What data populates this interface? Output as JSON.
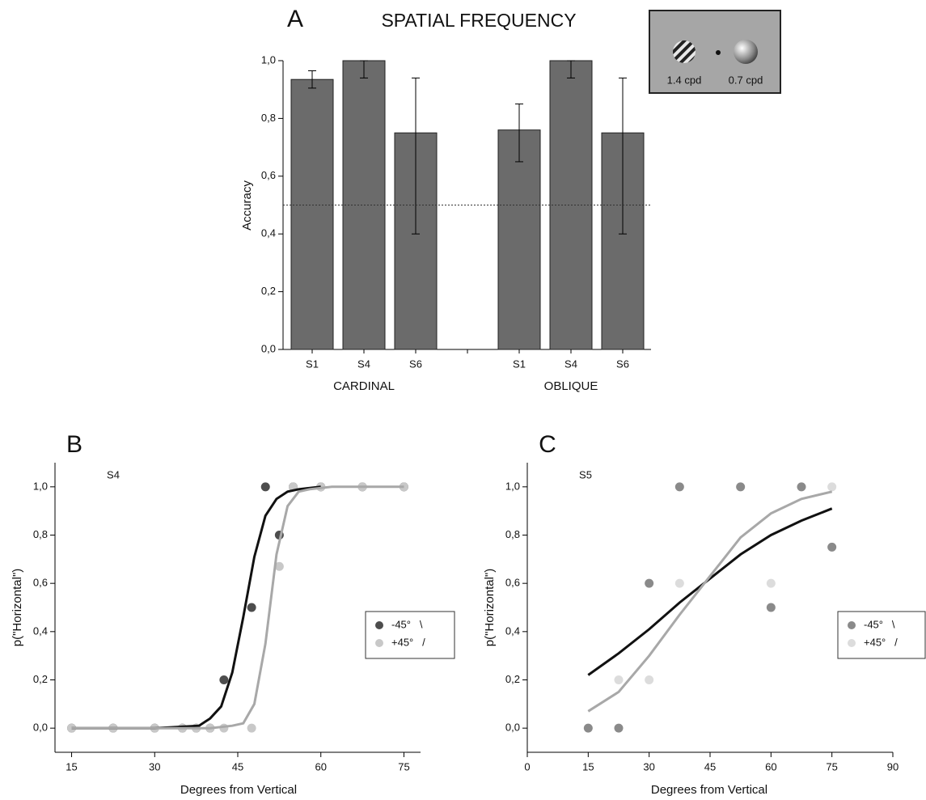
{
  "chart_data": [
    {
      "type": "bar",
      "panel": "A",
      "title": "SPATIAL FREQUENCY",
      "y_label": "Accuracy",
      "categories": [
        "S1",
        "S4",
        "S6",
        "S1",
        "S4",
        "S6"
      ],
      "groups": [
        "CARDINAL",
        "OBLIQUE"
      ],
      "values": [
        0.935,
        1.0,
        0.75,
        0.76,
        1.0,
        0.75
      ],
      "error_low": [
        0.03,
        0.06,
        0.35,
        0.11,
        0.06,
        0.35
      ],
      "error_high": [
        0.03,
        0,
        0.19,
        0.09,
        0,
        0.19
      ],
      "color": "#6b6b6b",
      "ylim": [
        0,
        1
      ],
      "yticks": [
        {
          "value": 0,
          "label": "0,0"
        },
        {
          "value": 0.2,
          "label": "0,2"
        },
        {
          "value": 0.4,
          "label": "0,4"
        },
        {
          "value": 0.6,
          "label": "0,6"
        },
        {
          "value": 0.8,
          "label": "0,8"
        },
        {
          "value": 1,
          "label": "1,0"
        }
      ],
      "hline": 0.5,
      "inset_labels": [
        "1.4 cpd",
        "0.7 cpd"
      ]
    },
    {
      "type": "scatter",
      "panel": "B",
      "subtitle": "S4",
      "x_label": "Degrees from Vertical",
      "y_label": "p(\"Horizontal\")",
      "xlim": [
        12,
        78
      ],
      "xticks": [
        15,
        30,
        45,
        60,
        75
      ],
      "ylim": [
        -0.1,
        1.1
      ],
      "yticks": [
        {
          "value": 0,
          "label": "0,0"
        },
        {
          "value": 0.2,
          "label": "0,2"
        },
        {
          "value": 0.4,
          "label": "0,4"
        },
        {
          "value": 0.6,
          "label": "0,6"
        },
        {
          "value": 0.8,
          "label": "0,8"
        },
        {
          "value": 1,
          "label": "1,0"
        }
      ],
      "legend": "right",
      "series": [
        {
          "name": "-45°   \\",
          "color": "#4d4d4d",
          "line_color": "#111111",
          "x": [
            15,
            22.5,
            30,
            35,
            37.5,
            40,
            42.5,
            47.5,
            50,
            52.5,
            55,
            60,
            67.5,
            75
          ],
          "values": [
            0,
            0,
            0,
            0,
            0,
            0,
            0.2,
            0.5,
            1,
            0.8,
            1,
            1,
            1,
            1
          ],
          "fit_x": [
            15,
            30,
            38,
            40,
            42,
            44,
            46,
            48,
            50,
            52,
            54,
            56,
            60
          ],
          "fit_values": [
            0,
            0,
            0.01,
            0.04,
            0.09,
            0.23,
            0.46,
            0.71,
            0.88,
            0.95,
            0.98,
            0.99,
            1
          ]
        },
        {
          "name": "+45°   /",
          "color": "#c8c8c8",
          "line_color": "#a8a8a8",
          "x": [
            15,
            22.5,
            30,
            35,
            37.5,
            40,
            42.5,
            47.5,
            52.5,
            55,
            60,
            67.5,
            75
          ],
          "values": [
            0,
            0,
            0,
            0,
            0,
            0,
            0,
            0,
            0.67,
            1,
            1,
            1,
            1
          ],
          "fit_x": [
            15,
            30,
            40,
            44,
            46,
            48,
            50,
            52,
            54,
            56,
            58,
            62,
            75
          ],
          "fit_values": [
            0,
            0,
            0,
            0.01,
            0.02,
            0.1,
            0.35,
            0.72,
            0.92,
            0.98,
            0.99,
            1,
            1
          ]
        }
      ]
    },
    {
      "type": "scatter",
      "panel": "C",
      "subtitle": "S5",
      "x_label": "Degrees from Vertical",
      "y_label": "p(\"Horizontal\")",
      "xlim": [
        0,
        90
      ],
      "xticks": [
        0,
        15,
        30,
        45,
        60,
        75,
        90
      ],
      "ylim": [
        -0.1,
        1.1
      ],
      "yticks": [
        {
          "value": 0,
          "label": "0,0"
        },
        {
          "value": 0.2,
          "label": "0,2"
        },
        {
          "value": 0.4,
          "label": "0,4"
        },
        {
          "value": 0.6,
          "label": "0,6"
        },
        {
          "value": 0.8,
          "label": "0,8"
        },
        {
          "value": 1,
          "label": "1,0"
        }
      ],
      "legend": "right",
      "series": [
        {
          "name": "-45°   \\",
          "color": "#8a8a8a",
          "line_color": "#111111",
          "x": [
            15,
            22.5,
            30,
            37.5,
            52.5,
            60,
            67.5,
            75
          ],
          "values": [
            0,
            0,
            0.6,
            1,
            1,
            0.5,
            1,
            0.75
          ],
          "fit_x": [
            15,
            22.5,
            30,
            37.5,
            45,
            52.5,
            60,
            67.5,
            75
          ],
          "fit_values": [
            0.22,
            0.31,
            0.41,
            0.52,
            0.62,
            0.72,
            0.8,
            0.86,
            0.91
          ]
        },
        {
          "name": "+45°   /",
          "color": "#dcdcdc",
          "line_color": "#a8a8a8",
          "x": [
            22.5,
            30,
            37.5,
            60,
            75
          ],
          "values": [
            0.2,
            0.2,
            0.6,
            0.6,
            1
          ],
          "fit_x": [
            15,
            22.5,
            30,
            37.5,
            45,
            52.5,
            60,
            67.5,
            75
          ],
          "fit_values": [
            0.07,
            0.15,
            0.3,
            0.47,
            0.63,
            0.79,
            0.89,
            0.95,
            0.98
          ]
        }
      ]
    }
  ]
}
